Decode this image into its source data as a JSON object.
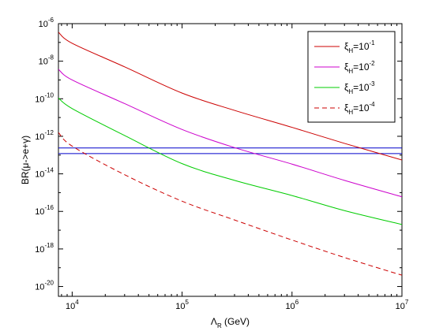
{
  "chart_data": {
    "type": "line",
    "xscale": "log",
    "yscale": "log",
    "xlim": [
      7500,
      10000000
    ],
    "ylim": [
      3e-21,
      1e-06
    ],
    "x_ticks": [
      {
        "base": "10",
        "exp": "4",
        "value": 10000
      },
      {
        "base": "10",
        "exp": "5",
        "value": 100000
      },
      {
        "base": "10",
        "exp": "6",
        "value": 1000000
      },
      {
        "base": "10",
        "exp": "7",
        "value": 10000000
      }
    ],
    "y_ticks": [
      {
        "base": "10",
        "exp": "-6",
        "value": 1e-06
      },
      {
        "base": "10",
        "exp": "-8",
        "value": 1e-08
      },
      {
        "base": "10",
        "exp": "-10",
        "value": 1e-10
      },
      {
        "base": "10",
        "exp": "-12",
        "value": 1e-12
      },
      {
        "base": "10",
        "exp": "-14",
        "value": 1e-14
      },
      {
        "base": "10",
        "exp": "-16",
        "value": 1e-16
      },
      {
        "base": "10",
        "exp": "-18",
        "value": 1e-18
      },
      {
        "base": "10",
        "exp": "-20",
        "value": 1e-20
      }
    ],
    "xlabel": {
      "main": "Λ",
      "sub": "R",
      "rest": " (GeV)"
    },
    "ylabel": "BR(μ->e+γ)",
    "legend_position": "top-right",
    "series": [
      {
        "label": {
          "sym": "ξ",
          "sub": "H",
          "base": "=10",
          "exp": "-1"
        },
        "color": "#cc0000",
        "dash": "solid",
        "x": [
          7500,
          10000,
          30000,
          100000,
          300000,
          1000000,
          3000000,
          10000000
        ],
        "y": [
          3.5e-07,
          9e-08,
          5e-09,
          2e-10,
          2.4e-11,
          3e-12,
          4.2e-13,
          5.5e-14
        ]
      },
      {
        "label": {
          "sym": "ξ",
          "sub": "H",
          "base": "=10",
          "exp": "-2"
        },
        "color": "#cc00cc",
        "dash": "solid",
        "x": [
          7500,
          10000,
          30000,
          100000,
          300000,
          1000000,
          3000000,
          10000000
        ],
        "y": [
          3.7e-09,
          1e-09,
          5.5e-11,
          2.3e-12,
          2.5e-13,
          3.3e-14,
          4.5e-15,
          6e-16
        ]
      },
      {
        "label": {
          "sym": "ξ",
          "sub": "H",
          "base": "=10",
          "exp": "-3"
        },
        "color": "#00cc00",
        "dash": "solid",
        "x": [
          7500,
          10000,
          30000,
          100000,
          300000,
          1000000,
          3000000,
          10000000
        ],
        "y": [
          1.1e-10,
          3e-11,
          1.1e-12,
          3.5e-14,
          4.5e-15,
          7e-16,
          1.1e-16,
          2e-17
        ]
      },
      {
        "label": {
          "sym": "ξ",
          "sub": "H",
          "base": "=10",
          "exp": "-4"
        },
        "color": "#cc0000",
        "dash": "dashed",
        "x": [
          7500,
          10000,
          30000,
          100000,
          300000,
          1000000,
          3000000,
          10000000
        ],
        "y": [
          1.6e-12,
          3e-13,
          9e-15,
          3.5e-16,
          3.5e-17,
          3e-18,
          3.5e-19,
          4e-20
        ]
      }
    ],
    "hlines": [
      {
        "y": 2.4e-13,
        "color": "#0000cc"
      },
      {
        "y": 1.2e-13,
        "color": "#0000cc"
      }
    ]
  }
}
